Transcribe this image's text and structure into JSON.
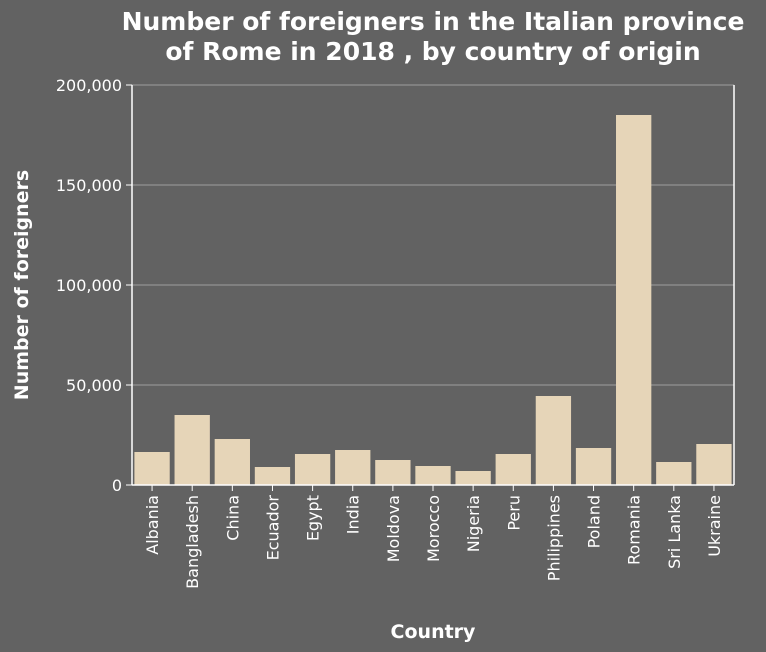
{
  "colors": {
    "background": "#626262",
    "bar": "#e6d5b8",
    "grid": "#8a8a8a",
    "axis": "#ffffff",
    "text": "#ffffff"
  },
  "chart_data": {
    "type": "bar",
    "title_lines": [
      "Number of foreigners in the Italian province",
      "of Rome in 2018 , by country of origin"
    ],
    "xlabel": "Country",
    "ylabel": "Number of foreigners",
    "ylim": [
      0,
      200000
    ],
    "yticks": [
      0,
      50000,
      100000,
      150000,
      200000
    ],
    "ytick_labels": [
      "0",
      "50,000",
      "100,000",
      "150,000",
      "200,000"
    ],
    "grid": "horizontal",
    "categories": [
      "Albania",
      "Bangladesh",
      "China",
      "Ecuador",
      "Egypt",
      "India",
      "Moldova",
      "Morocco",
      "Nigeria",
      "Peru",
      "Philippines",
      "Poland",
      "Romania",
      "Sri Lanka",
      "Ukraine"
    ],
    "values": [
      16500,
      35000,
      23000,
      9000,
      15500,
      17500,
      12500,
      9500,
      7000,
      15500,
      44500,
      18500,
      185000,
      11500,
      20500
    ]
  }
}
